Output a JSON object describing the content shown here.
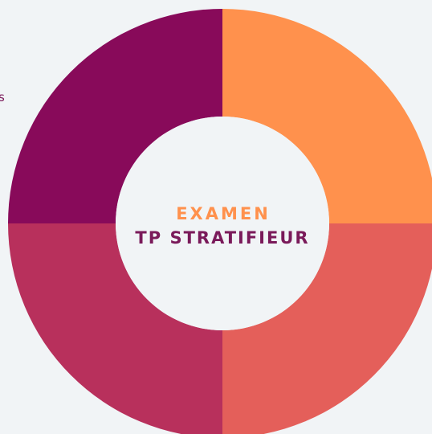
{
  "center": {
    "line1": "EXAMEN",
    "line2": "TP STRATIFIEUR"
  },
  "side_fragment": "s"
}
